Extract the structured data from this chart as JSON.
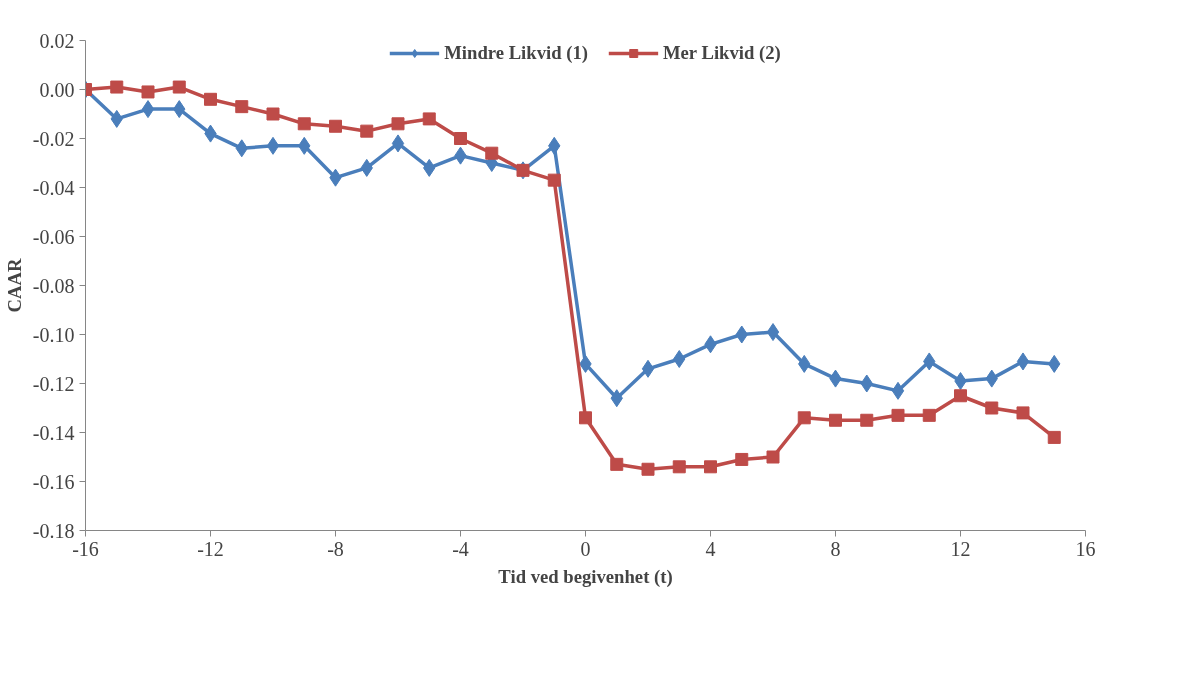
{
  "chart_data": {
    "type": "line",
    "xlabel": "Tid ved begivenhet (t)",
    "ylabel": "CAAR",
    "x": [
      -16,
      -15,
      -14,
      -13,
      -12,
      -11,
      -10,
      -9,
      -8,
      -7,
      -6,
      -5,
      -4,
      -3,
      -2,
      -1,
      0,
      1,
      2,
      3,
      4,
      5,
      6,
      7,
      8,
      9,
      10,
      11,
      12,
      13,
      14,
      15
    ],
    "series": [
      {
        "name": "Mindre Likvid (1)",
        "color": "#4a7ebb",
        "marker": "diamond",
        "values": [
          0.0,
          -0.012,
          -0.008,
          -0.008,
          -0.018,
          -0.024,
          -0.023,
          -0.023,
          -0.036,
          -0.032,
          -0.022,
          -0.032,
          -0.027,
          -0.03,
          -0.033,
          -0.023,
          -0.112,
          -0.126,
          -0.114,
          -0.11,
          -0.104,
          -0.1,
          -0.099,
          -0.112,
          -0.118,
          -0.12,
          -0.123,
          -0.111,
          -0.119,
          -0.118,
          -0.111,
          -0.112
        ]
      },
      {
        "name": "Mer Likvid (2)",
        "color": "#be4b48",
        "marker": "square",
        "values": [
          0.0,
          0.001,
          -0.001,
          0.001,
          -0.004,
          -0.007,
          -0.01,
          -0.014,
          -0.015,
          -0.017,
          -0.014,
          -0.012,
          -0.02,
          -0.026,
          -0.033,
          -0.037,
          -0.134,
          -0.153,
          -0.155,
          -0.154,
          -0.154,
          -0.151,
          -0.15,
          -0.134,
          -0.135,
          -0.135,
          -0.133,
          -0.133,
          -0.125,
          -0.13,
          -0.132,
          -0.142
        ]
      }
    ],
    "xlim": [
      -16,
      16
    ],
    "xticks": [
      -16,
      -12,
      -8,
      -4,
      0,
      4,
      8,
      12,
      16
    ],
    "ylim": [
      -0.18,
      0.02
    ],
    "yticks": [
      {
        "value": 0.02,
        "label": "0.02"
      },
      {
        "value": 0,
        "label": "0.00"
      },
      {
        "value": -0.02,
        "label": "-0.02"
      },
      {
        "value": -0.04,
        "label": "-0.04"
      },
      {
        "value": -0.06,
        "label": "-0.06"
      },
      {
        "value": -0.08,
        "label": "-0.08"
      },
      {
        "value": -0.1,
        "label": "-0.10"
      },
      {
        "value": -0.12,
        "label": "-0.12"
      },
      {
        "value": -0.14,
        "label": "-0.14"
      },
      {
        "value": -0.16,
        "label": "-0.16"
      },
      {
        "value": -0.18,
        "label": "-0.18"
      }
    ],
    "legend": "top",
    "grid": false,
    "line_style": "solid"
  }
}
